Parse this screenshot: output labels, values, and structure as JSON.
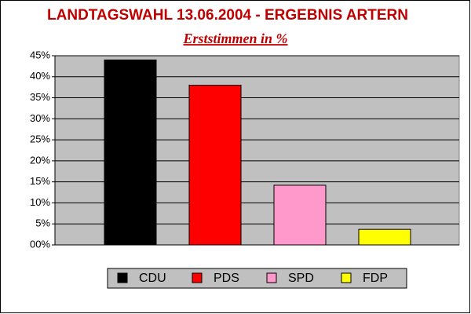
{
  "chart_data": {
    "type": "bar",
    "title": "LANDTAGSWAHL 13.06.2004 - ERGEBNIS ARTERN",
    "subtitle": "Erststimmen in %",
    "categories": [
      "CDU",
      "PDS",
      "SPD",
      "FDP"
    ],
    "values": [
      44,
      38,
      14.2,
      3.7
    ],
    "colors": [
      "#000000",
      "#ff0000",
      "#ff99cc",
      "#ffff00"
    ],
    "ylim": [
      0,
      45
    ],
    "yticks": [
      {
        "value": 0,
        "label": "00%"
      },
      {
        "value": 5,
        "label": "5%"
      },
      {
        "value": 10,
        "label": "10%"
      },
      {
        "value": 15,
        "label": "15%"
      },
      {
        "value": 20,
        "label": "20%"
      },
      {
        "value": 25,
        "label": "25%"
      },
      {
        "value": 30,
        "label": "30%"
      },
      {
        "value": 35,
        "label": "35%"
      },
      {
        "value": 40,
        "label": "40%"
      },
      {
        "value": 45,
        "label": "45%"
      }
    ],
    "grid": true,
    "legend": "bottom"
  }
}
